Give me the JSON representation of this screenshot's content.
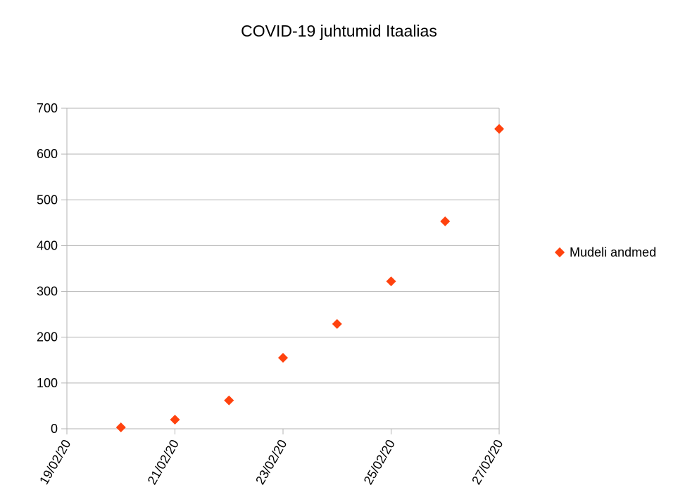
{
  "chart_data": {
    "type": "scatter",
    "title": "COVID-19 juhtumid Itaalias",
    "xlabel": "",
    "ylabel": "",
    "x_ticks": [
      "19/02/20",
      "21/02/20",
      "23/02/20",
      "25/02/20",
      "27/02/20"
    ],
    "y_ticks": [
      "0",
      "100",
      "200",
      "300",
      "400",
      "500",
      "600",
      "700"
    ],
    "xlim": [
      "19/02/20",
      "27/02/20"
    ],
    "ylim": [
      0,
      700
    ],
    "grid": "horizontal",
    "legend_position": "right",
    "series": [
      {
        "name": "Mudeli andmed",
        "color": "#ff420e",
        "marker": "diamond",
        "points": [
          {
            "x": "20/02/20",
            "y": 3
          },
          {
            "x": "21/02/20",
            "y": 20
          },
          {
            "x": "22/02/20",
            "y": 62
          },
          {
            "x": "23/02/20",
            "y": 155
          },
          {
            "x": "24/02/20",
            "y": 229
          },
          {
            "x": "25/02/20",
            "y": 322
          },
          {
            "x": "26/02/20",
            "y": 453
          },
          {
            "x": "27/02/20",
            "y": 655
          }
        ]
      }
    ]
  }
}
